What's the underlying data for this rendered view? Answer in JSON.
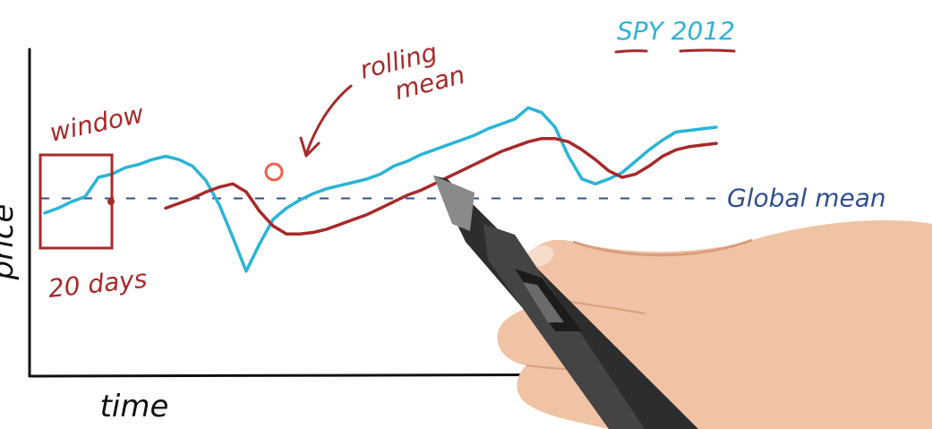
{
  "chart_data": {
    "type": "line",
    "title": "SPY 2012",
    "xlabel": "time",
    "ylabel": "price",
    "grid": false,
    "series": [
      {
        "name": "SPY 2012",
        "color": "#2ab4d6",
        "x": [
          0,
          2,
          4,
          6,
          8,
          10,
          12,
          14,
          16,
          18,
          20,
          22,
          24,
          26,
          28,
          30,
          32,
          34,
          36,
          38,
          40,
          42,
          44,
          46,
          48,
          50,
          52,
          54,
          56,
          58,
          60,
          62,
          64,
          66,
          68,
          70,
          72,
          74,
          76,
          78,
          80,
          82,
          84,
          86,
          88,
          90,
          92,
          94,
          96,
          98,
          100
        ],
        "y": [
          -0.9,
          -0.6,
          -0.2,
          0.1,
          1.3,
          1.5,
          1.9,
          2.1,
          2.4,
          2.6,
          2.4,
          2.0,
          1.1,
          -0.4,
          -2.4,
          -4.5,
          -2.8,
          -1.3,
          -0.6,
          -0.1,
          0.3,
          0.6,
          0.8,
          1.0,
          1.2,
          1.5,
          2.0,
          2.3,
          2.7,
          3.0,
          3.3,
          3.6,
          3.9,
          4.3,
          4.6,
          4.9,
          5.6,
          5.3,
          4.4,
          2.6,
          1.2,
          0.9,
          1.2,
          1.6,
          2.3,
          3.0,
          3.6,
          4.1,
          4.2,
          4.3,
          4.4
        ]
      },
      {
        "name": "rolling mean",
        "color": "#a52a2a",
        "x": [
          18,
          20,
          22,
          24,
          26,
          28,
          30,
          32,
          34,
          36,
          38,
          40,
          42,
          44,
          46,
          48,
          50,
          52,
          54,
          56,
          58,
          60,
          62,
          64,
          66,
          68,
          70,
          72,
          74,
          76,
          78,
          80,
          82,
          84,
          86,
          88,
          90,
          92,
          94,
          96,
          98,
          100
        ],
        "y": [
          -0.6,
          -0.3,
          0.0,
          0.4,
          0.7,
          0.9,
          0.4,
          -0.8,
          -1.7,
          -2.2,
          -2.2,
          -2.1,
          -1.9,
          -1.6,
          -1.3,
          -1.0,
          -0.6,
          -0.2,
          0.2,
          0.5,
          0.9,
          1.3,
          1.7,
          2.1,
          2.5,
          2.9,
          3.2,
          3.5,
          3.7,
          3.7,
          3.5,
          3.0,
          2.4,
          1.7,
          1.3,
          1.5,
          2.0,
          2.6,
          3.0,
          3.2,
          3.3,
          3.4
        ]
      }
    ],
    "global_mean": 0.0,
    "xlim": [
      0,
      100
    ],
    "ylim": [
      -6,
      7
    ],
    "annotations": [
      "window",
      "20 days",
      "rolling mean",
      "Global mean"
    ],
    "colors": {
      "axes": "#111111",
      "window": "#a52a2a",
      "global_mean": "#2f4f8f",
      "marker": "#e8624a",
      "skin": "#efc3a4",
      "pen": "#2d2d2d"
    }
  }
}
